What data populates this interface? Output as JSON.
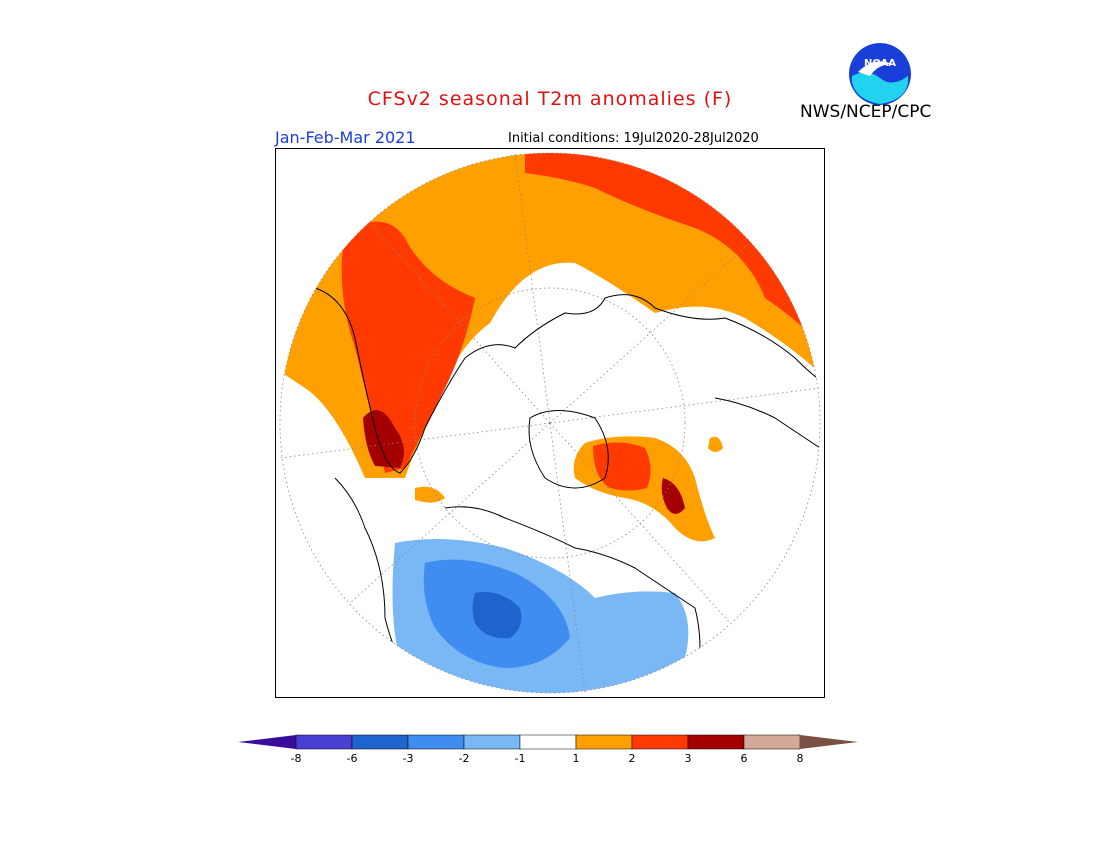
{
  "header": {
    "title": "CFSv2 seasonal T2m anomalies (F)",
    "agency": "NWS/NCEP/CPC",
    "period": "Jan-Feb-Mar 2021",
    "initial_conditions": "Initial conditions: 19Jul2020-28Jul2020",
    "logo_text": "NOAA"
  },
  "colorbar": {
    "labels": [
      "-8",
      "-6",
      "-3",
      "-2",
      "-1",
      "1",
      "2",
      "3",
      "6",
      "8"
    ],
    "colors": [
      "#3a0c9c",
      "#4a3fd0",
      "#1f63cf",
      "#3f8df0",
      "#7ab8f5",
      "#ffffff",
      "#ff9f00",
      "#ff3a00",
      "#a50000",
      "#d2a898",
      "#7a5040"
    ]
  },
  "map": {
    "projection": "north-polar-stereographic",
    "colors": {
      "warm1": "#ff9f00",
      "warm2": "#ff3a00",
      "warm3": "#a50000",
      "cool1": "#7ab8f5",
      "cool2": "#3f8df0",
      "cool3": "#1f63cf"
    }
  }
}
